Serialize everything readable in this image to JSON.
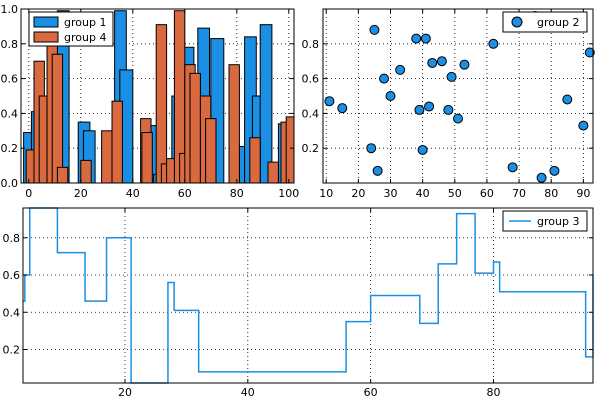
{
  "colors": {
    "group1": "#1a8fe3",
    "group2": "#1a8fe3",
    "group3": "#1a8fe3",
    "group4": "#d9693f",
    "edge": "#000000",
    "grid": "#000000"
  },
  "chart_data": [
    {
      "type": "bar",
      "xlim": [
        -3,
        102
      ],
      "ylim": [
        0,
        1.0
      ],
      "xticks": [
        0,
        20,
        40,
        60,
        80,
        100
      ],
      "xtick_labels": [
        "0",
        "20",
        "40",
        "60",
        "80",
        "100"
      ],
      "yticks": [
        0.0,
        0.2,
        0.4,
        0.6,
        0.8,
        1.0
      ],
      "ytick_labels": [
        "0.0",
        "0.2",
        "0.4",
        "0.6",
        "0.8",
        "1.0"
      ],
      "legend": {
        "position": "top-left",
        "entries": [
          "group 1",
          "group 4"
        ]
      },
      "series": [
        {
          "name": "group 1",
          "color": "#1a8fe3",
          "bars": [
            {
              "x": -2,
              "w": 3.5,
              "y": 0.29
            },
            {
              "x": 1,
              "w": 3.5,
              "y": 0.41
            },
            {
              "x": 11,
              "w": 4.5,
              "y": 0.99
            },
            {
              "x": 19,
              "w": 4.5,
              "y": 0.35
            },
            {
              "x": 21,
              "w": 4.5,
              "y": 0.3
            },
            {
              "x": 33,
              "w": 4.5,
              "y": 0.99
            },
            {
              "x": 35,
              "w": 5,
              "y": 0.65
            },
            {
              "x": 46,
              "w": 3.5,
              "y": 0.33
            },
            {
              "x": 48,
              "w": 3.5,
              "y": 0.05
            },
            {
              "x": 55,
              "w": 4.5,
              "y": 0.5
            },
            {
              "x": 59,
              "w": 4.5,
              "y": 0.78
            },
            {
              "x": 63,
              "w": 4.5,
              "y": 0.53
            },
            {
              "x": 65,
              "w": 4.5,
              "y": 0.89
            },
            {
              "x": 70,
              "w": 5,
              "y": 0.83
            },
            {
              "x": 79,
              "w": 4,
              "y": 0.21
            },
            {
              "x": 83,
              "w": 4.5,
              "y": 0.84
            },
            {
              "x": 86,
              "w": 4.5,
              "y": 0.5
            },
            {
              "x": 89,
              "w": 4.5,
              "y": 0.91
            },
            {
              "x": 96,
              "w": 4.5,
              "y": 0.34
            }
          ]
        },
        {
          "name": "group 4",
          "color": "#d9693f",
          "bars": [
            {
              "x": -1,
              "w": 4,
              "y": 0.19
            },
            {
              "x": 2,
              "w": 4,
              "y": 0.7
            },
            {
              "x": 4,
              "w": 4,
              "y": 0.5
            },
            {
              "x": 7,
              "w": 4,
              "y": 0.8
            },
            {
              "x": 9,
              "w": 4,
              "y": 0.74
            },
            {
              "x": 11,
              "w": 4,
              "y": 0.09
            },
            {
              "x": 20,
              "w": 4,
              "y": 0.13
            },
            {
              "x": 28,
              "w": 4,
              "y": 0.3
            },
            {
              "x": 32,
              "w": 4,
              "y": 0.47
            },
            {
              "x": 43,
              "w": 4,
              "y": 0.37
            },
            {
              "x": 43.5,
              "w": 4,
              "y": 0.29
            },
            {
              "x": 49,
              "w": 4,
              "y": 0.91
            },
            {
              "x": 51,
              "w": 4,
              "y": 0.11
            },
            {
              "x": 53,
              "w": 4,
              "y": 0.14
            },
            {
              "x": 56,
              "w": 4,
              "y": 0.99
            },
            {
              "x": 58,
              "w": 4,
              "y": 0.17
            },
            {
              "x": 60,
              "w": 4,
              "y": 0.68
            },
            {
              "x": 62,
              "w": 4,
              "y": 0.63
            },
            {
              "x": 66,
              "w": 4,
              "y": 0.5
            },
            {
              "x": 68,
              "w": 4,
              "y": 0.37
            },
            {
              "x": 77,
              "w": 4,
              "y": 0.68
            },
            {
              "x": 85,
              "w": 4,
              "y": 0.26
            },
            {
              "x": 92,
              "w": 4,
              "y": 0.12
            },
            {
              "x": 97,
              "w": 4,
              "y": 0.35
            },
            {
              "x": 99,
              "w": 4,
              "y": 0.38
            }
          ]
        }
      ]
    },
    {
      "type": "scatter",
      "xlim": [
        9,
        93
      ],
      "ylim": [
        0,
        1.0
      ],
      "xticks": [
        10,
        20,
        30,
        40,
        50,
        60,
        70,
        80,
        90
      ],
      "xtick_labels": [
        "10",
        "20",
        "30",
        "40",
        "50",
        "60",
        "70",
        "80",
        "90"
      ],
      "yticks": [
        0.2,
        0.4,
        0.6,
        0.8
      ],
      "ytick_labels": [
        "0.2",
        "0.4",
        "0.6",
        "0.8"
      ],
      "legend": {
        "position": "top-right",
        "entries": [
          "group 2"
        ]
      },
      "series": [
        {
          "name": "group 2",
          "color": "#1a8fe3",
          "points": [
            [
              11,
              0.47
            ],
            [
              15,
              0.43
            ],
            [
              24,
              0.2
            ],
            [
              25,
              0.88
            ],
            [
              26,
              0.07
            ],
            [
              28,
              0.6
            ],
            [
              30,
              0.5
            ],
            [
              33,
              0.65
            ],
            [
              38,
              0.83
            ],
            [
              39,
              0.42
            ],
            [
              40,
              0.19
            ],
            [
              41,
              0.83
            ],
            [
              42,
              0.44
            ],
            [
              43,
              0.69
            ],
            [
              46,
              0.7
            ],
            [
              48,
              0.42
            ],
            [
              49,
              0.61
            ],
            [
              51,
              0.37
            ],
            [
              53,
              0.68
            ],
            [
              62,
              0.8
            ],
            [
              68,
              0.09
            ],
            [
              75,
              0.96
            ],
            [
              77,
              0.03
            ],
            [
              81,
              0.07
            ],
            [
              85,
              0.48
            ],
            [
              90,
              0.33
            ],
            [
              92,
              0.75
            ]
          ]
        }
      ]
    },
    {
      "type": "line",
      "step": "post",
      "xlim": [
        3.4,
        96.2
      ],
      "ylim": [
        0.02,
        0.96
      ],
      "xticks": [
        20,
        40,
        60,
        80
      ],
      "xtick_labels": [
        "20",
        "40",
        "60",
        "80"
      ],
      "yticks": [
        0.2,
        0.4,
        0.6,
        0.8
      ],
      "ytick_labels": [
        "0.2",
        "0.4",
        "0.6",
        "0.8"
      ],
      "legend": {
        "position": "top-right",
        "entries": [
          "group 3"
        ]
      },
      "series": [
        {
          "name": "group 3",
          "color": "#1a8fe3",
          "x": [
            3.4,
            3.7,
            4.5,
            9,
            13.5,
            17,
            21,
            27,
            28,
            32,
            56,
            60,
            68,
            71,
            74,
            77,
            80,
            81,
            95,
            96.2
          ],
          "y": [
            0.46,
            0.6,
            0.96,
            0.72,
            0.46,
            0.8,
            0.02,
            0.56,
            0.41,
            0.08,
            0.35,
            0.49,
            0.34,
            0.66,
            0.93,
            0.61,
            0.67,
            0.51,
            0.16,
            0.6
          ]
        }
      ]
    }
  ]
}
